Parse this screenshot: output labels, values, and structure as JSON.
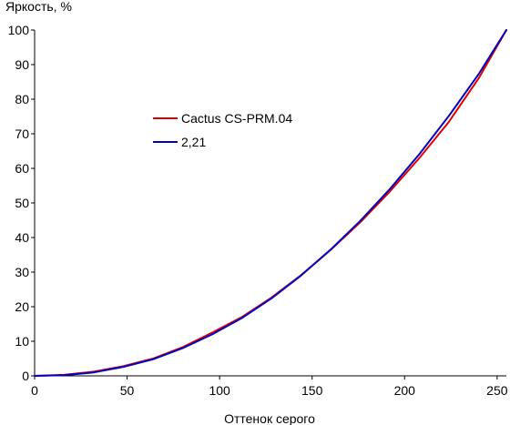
{
  "chart_data": {
    "type": "line",
    "title": "",
    "ylabel": "Яркость, %",
    "xlabel": "Оттенок серого",
    "xlim": [
      0,
      255
    ],
    "ylim": [
      0,
      100
    ],
    "xticks": [
      0,
      50,
      100,
      150,
      200,
      250
    ],
    "yticks": [
      0,
      10,
      20,
      30,
      40,
      50,
      60,
      70,
      80,
      90,
      100
    ],
    "grid": false,
    "legend_position": "upper-left inside plot",
    "series": [
      {
        "name": "Cactus CS-PRM.04",
        "color": "#e00000",
        "x": [
          0,
          16,
          32,
          48,
          64,
          80,
          96,
          112,
          128,
          144,
          160,
          176,
          192,
          208,
          224,
          240,
          255
        ],
        "y": [
          0,
          0.3,
          1.2,
          2.8,
          5.0,
          8.3,
          12.5,
          17.0,
          22.6,
          29.1,
          36.4,
          44.4,
          53.3,
          63.0,
          73.5,
          86.0,
          100
        ]
      },
      {
        "name": "2,21",
        "color": "#0000c0",
        "x": [
          0,
          16,
          32,
          48,
          64,
          80,
          96,
          112,
          128,
          144,
          160,
          176,
          192,
          208,
          224,
          240,
          255
        ],
        "y": [
          0,
          0.2,
          1.0,
          2.6,
          4.8,
          8.0,
          12.0,
          16.7,
          22.4,
          29.0,
          36.5,
          44.8,
          54.0,
          64.1,
          75.2,
          87.2,
          100
        ]
      }
    ]
  }
}
